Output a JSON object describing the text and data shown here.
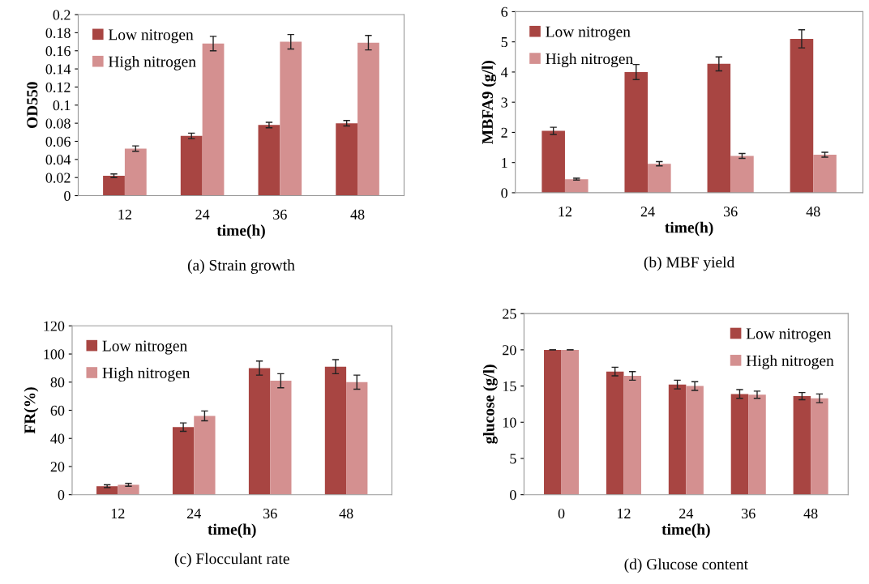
{
  "chart_data": [
    {
      "type": "bar",
      "title": "(a) Strain growth",
      "xlabel": "time(h)",
      "ylabel": "OD550",
      "categories": [
        "12",
        "24",
        "36",
        "48"
      ],
      "ylim": [
        0,
        0.2
      ],
      "yticks": [
        0,
        0.02,
        0.04,
        0.06,
        0.08,
        0.1,
        0.12,
        0.14,
        0.16,
        0.18,
        0.2
      ],
      "grid": false,
      "legend": "top left",
      "series": [
        {
          "name": "Low nitrogen",
          "color": "#a84542",
          "values": [
            0.022,
            0.066,
            0.078,
            0.08
          ],
          "errors": [
            0.002,
            0.003,
            0.003,
            0.003
          ]
        },
        {
          "name": "High nitrogen",
          "color": "#d49090",
          "values": [
            0.052,
            0.168,
            0.17,
            0.169
          ],
          "errors": [
            0.003,
            0.008,
            0.008,
            0.008
          ]
        }
      ]
    },
    {
      "type": "bar",
      "title": "(b) MBF yield",
      "xlabel": "time(h)",
      "ylabel": "MBFA9 (g/l)",
      "categories": [
        "12",
        "24",
        "36",
        "48"
      ],
      "ylim": [
        0,
        6
      ],
      "yticks": [
        0,
        1,
        2,
        3,
        4,
        5,
        6
      ],
      "grid": false,
      "legend": "top left",
      "series": [
        {
          "name": "Low nitrogen",
          "color": "#a84542",
          "values": [
            2.05,
            4.0,
            4.27,
            5.1
          ],
          "errors": [
            0.12,
            0.25,
            0.23,
            0.3
          ]
        },
        {
          "name": "High nitrogen",
          "color": "#d49090",
          "values": [
            0.45,
            0.96,
            1.22,
            1.26
          ],
          "errors": [
            0.03,
            0.07,
            0.08,
            0.08
          ]
        }
      ]
    },
    {
      "type": "bar",
      "title": "(c) Flocculant rate",
      "xlabel": "time(h)",
      "ylabel": "FR(%)",
      "categories": [
        "12",
        "24",
        "36",
        "48"
      ],
      "ylim": [
        0,
        120
      ],
      "yticks": [
        0,
        20,
        40,
        60,
        80,
        100,
        120
      ],
      "grid": false,
      "legend": "top left",
      "series": [
        {
          "name": "Low nitrogen",
          "color": "#a84542",
          "values": [
            6,
            48,
            90,
            91
          ],
          "errors": [
            1,
            3,
            5,
            5
          ]
        },
        {
          "name": "High nitrogen",
          "color": "#d49090",
          "values": [
            7,
            56,
            81,
            80
          ],
          "errors": [
            1,
            3.5,
            5,
            5
          ]
        }
      ]
    },
    {
      "type": "bar",
      "title": "(d) Glucose content",
      "xlabel": "time(h)",
      "ylabel": "glucose (g/l)",
      "categories": [
        "0",
        "12",
        "24",
        "36",
        "48"
      ],
      "ylim": [
        0,
        25
      ],
      "yticks": [
        0,
        5,
        10,
        15,
        20,
        25
      ],
      "grid": false,
      "legend": "top right",
      "series": [
        {
          "name": "Low nitrogen",
          "color": "#a84542",
          "values": [
            20,
            17,
            15.2,
            13.9,
            13.6
          ],
          "errors": [
            0,
            0.6,
            0.6,
            0.6,
            0.5
          ]
        },
        {
          "name": "High nitrogen",
          "color": "#d49090",
          "values": [
            20,
            16.4,
            15,
            13.8,
            13.3
          ],
          "errors": [
            0,
            0.6,
            0.6,
            0.5,
            0.6
          ]
        }
      ]
    }
  ]
}
